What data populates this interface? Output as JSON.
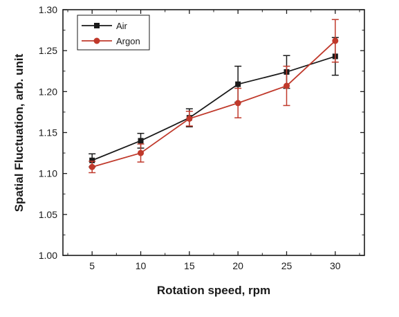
{
  "chart_data": {
    "type": "line",
    "title": "",
    "xlabel": "Rotation speed, rpm",
    "ylabel": "Spatial Fluctuation, arb. unit",
    "x": [
      5,
      10,
      15,
      20,
      25,
      30
    ],
    "xticks": [
      "5",
      "10",
      "15",
      "20",
      "25",
      "30"
    ],
    "xlim": [
      2,
      33
    ],
    "ylim": [
      1.0,
      1.3
    ],
    "yticks": [
      "1.00",
      "1.05",
      "1.10",
      "1.15",
      "1.20",
      "1.25",
      "1.30"
    ],
    "grid": false,
    "legend_position": "top-left",
    "series": [
      {
        "name": "Air",
        "color": "#1a1a1a",
        "marker": "square",
        "values": [
          1.116,
          1.14,
          1.168,
          1.209,
          1.224,
          1.243
        ],
        "errors": [
          0.008,
          0.009,
          0.011,
          0.022,
          0.02,
          0.023
        ]
      },
      {
        "name": "Argon",
        "color": "#c0392b",
        "marker": "circle",
        "values": [
          1.108,
          1.125,
          1.167,
          1.186,
          1.207,
          1.262
        ],
        "errors": [
          0.007,
          0.011,
          0.009,
          0.018,
          0.024,
          0.026
        ]
      }
    ]
  }
}
